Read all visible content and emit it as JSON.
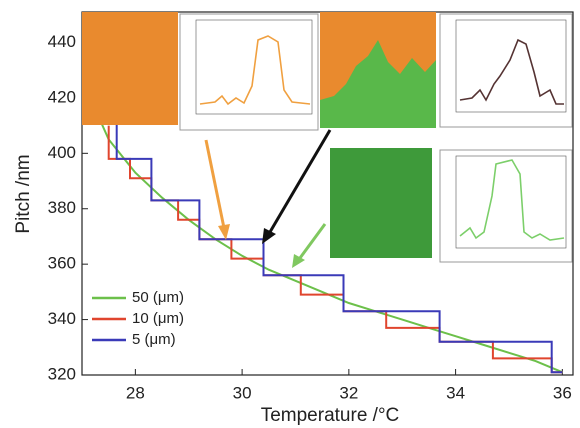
{
  "chart_data": {
    "type": "line",
    "xlabel": "Temperature /°C",
    "ylabel": "Pitch /nm",
    "xlim": [
      27,
      36.2
    ],
    "xticks": [
      28,
      30,
      32,
      34,
      36
    ],
    "ylim": [
      320,
      451
    ],
    "yticks": [
      320,
      340,
      360,
      380,
      400,
      420,
      440
    ],
    "legend": "lower left",
    "series": [
      {
        "name": "50 (μm)",
        "color": "#6cc04a",
        "x": [
          27.2,
          27.5,
          28,
          28.5,
          29,
          29.5,
          30,
          30.5,
          31,
          31.5,
          32,
          32.5,
          33,
          33.5,
          34,
          34.5,
          35,
          35.5,
          36
        ],
        "values": [
          418,
          405,
          393,
          384,
          376,
          369,
          363,
          358,
          354,
          350,
          346,
          343,
          340,
          337,
          334,
          331,
          328,
          325,
          321
        ]
      },
      {
        "name": "10 (μm)",
        "color": "#e0452e",
        "x": [
          27.5,
          27.5,
          27.9,
          27.9,
          28.3,
          28.3,
          28.8,
          28.8,
          29.2,
          29.2,
          29.8,
          29.8,
          30.4,
          30.4,
          31.1,
          31.1,
          31.9,
          31.9,
          32.7,
          32.7,
          33.7,
          33.7,
          34.7,
          34.7,
          35.8,
          35.8,
          36
        ],
        "values": [
          410,
          398,
          398,
          391,
          391,
          383,
          383,
          376,
          376,
          369,
          369,
          362,
          362,
          356,
          356,
          349,
          349,
          343,
          343,
          337,
          337,
          332,
          332,
          326,
          326,
          321,
          321
        ]
      },
      {
        "name": "5 (μm)",
        "color": "#3a3ab8",
        "x": [
          27.65,
          27.65,
          28.3,
          28.3,
          29.2,
          29.2,
          30.4,
          30.4,
          31.9,
          31.9,
          33.7,
          33.7,
          35.8,
          35.8,
          36
        ],
        "values": [
          412,
          398,
          398,
          383,
          383,
          369,
          369,
          356,
          356,
          343,
          343,
          332,
          332,
          321,
          321
        ]
      }
    ]
  }
}
